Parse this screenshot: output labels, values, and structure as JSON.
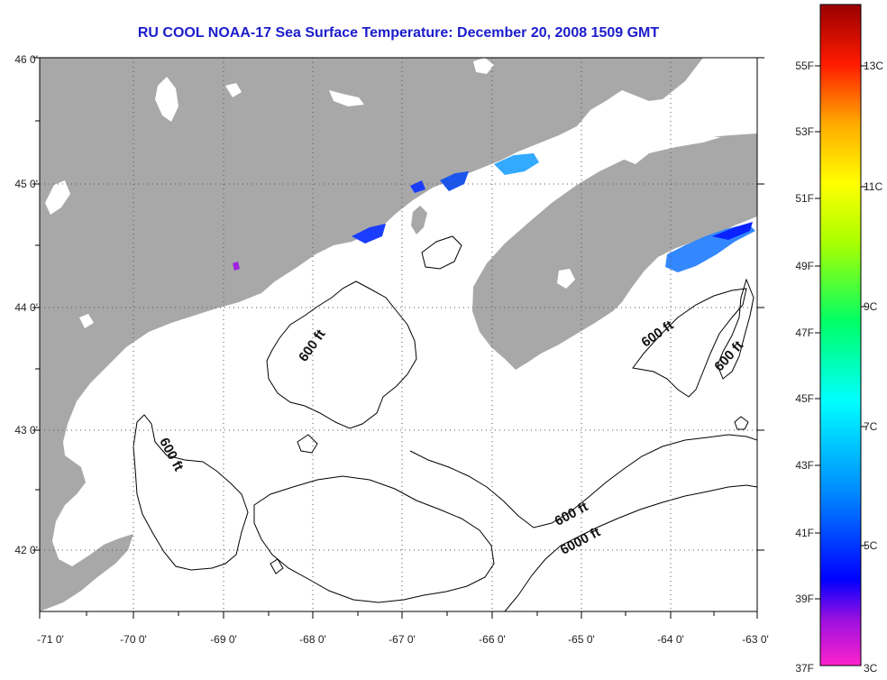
{
  "title": "RU COOL  NOAA-17  Sea Surface Temperature:  December 20, 2008 1509 GMT",
  "map": {
    "lon_labels": [
      "-71 0'",
      "-70 0'",
      "-69 0'",
      "-68 0'",
      "-67 0'",
      "-66 0'",
      "-65 0'",
      "-64 0'",
      "-63 0'"
    ],
    "lat_labels": [
      "46 0'",
      "45 0'",
      "44 0'",
      "43 0'",
      "42 0'"
    ],
    "contour_labels": [
      "600 ft",
      "600 ft",
      "600 ft",
      "600 ft",
      "600 ft",
      "6000 ft"
    ],
    "colors": {
      "land": "#a8a8a8",
      "water": "#ffffff",
      "frame": "#000000"
    }
  },
  "colorbar": {
    "fahrenheit_labels": [
      "55F",
      "53F",
      "51F",
      "49F",
      "47F",
      "45F",
      "43F",
      "41F",
      "39F",
      "37F"
    ],
    "celsius_labels": [
      "13C",
      "11C",
      "9C",
      "7C",
      "5C",
      "3C"
    ]
  }
}
